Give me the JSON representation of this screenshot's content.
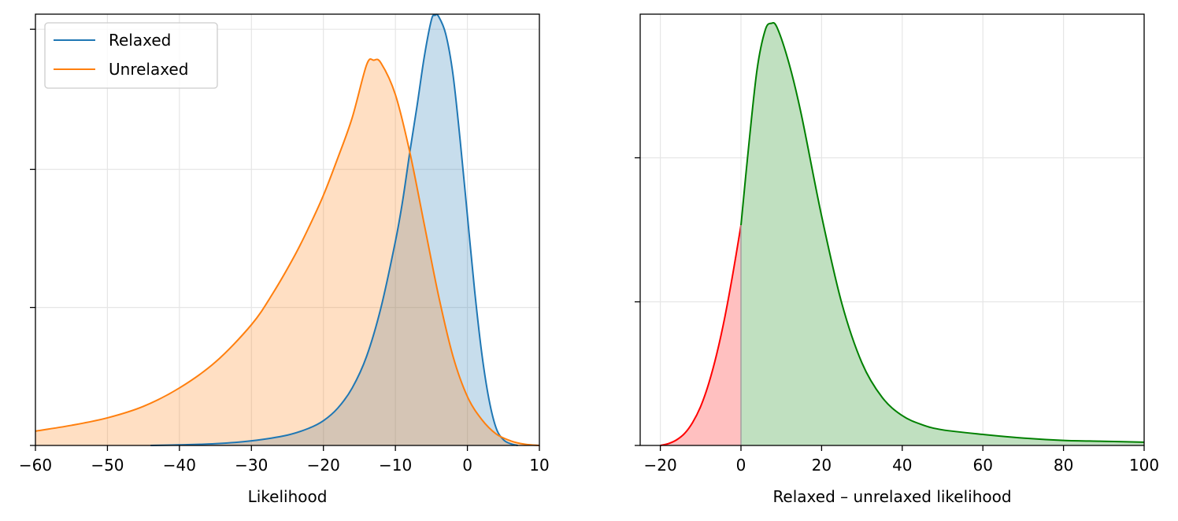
{
  "chart_data": [
    {
      "type": "line",
      "xlabel": "Likelihood",
      "ylabel": "",
      "xlim": [
        -60,
        10
      ],
      "xticks": [
        -60,
        -50,
        -40,
        -30,
        -20,
        -10,
        0,
        10
      ],
      "xtick_labels": [
        "−60",
        "−50",
        "−40",
        "−30",
        "−20",
        "−10",
        "0",
        "10"
      ],
      "y_ticks_unlabeled": true,
      "grid": true,
      "legend_position": "upper-left",
      "series": [
        {
          "name": "Relaxed",
          "color": "#1f77b4",
          "fill": true,
          "x": [
            -44,
            -40,
            -35,
            -30,
            -25,
            -22,
            -20,
            -18,
            -16,
            -14,
            -12,
            -10,
            -9,
            -8,
            -7,
            -6,
            -5,
            -4.5,
            -4,
            -3,
            -2,
            -1,
            0,
            1,
            2,
            3,
            4,
            5,
            6,
            7
          ],
          "y": [
            0.0,
            0.1,
            0.3,
            0.8,
            1.8,
            3.0,
            4.3,
            6.5,
            10.0,
            15.5,
            24.0,
            35.5,
            42.5,
            51.0,
            59.0,
            67.5,
            74.0,
            74.8,
            74.6,
            71.5,
            64.5,
            53.0,
            40.0,
            27.0,
            16.0,
            8.0,
            3.0,
            1.0,
            0.3,
            0.0
          ]
        },
        {
          "name": "Unrelaxed",
          "color": "#ff7f0e",
          "fill": true,
          "x": [
            -60,
            -55,
            -50,
            -45,
            -40,
            -35,
            -30,
            -27,
            -24,
            -22,
            -20,
            -18,
            -16,
            -14,
            -13,
            -12,
            -10,
            -8,
            -6,
            -4,
            -2,
            0,
            2,
            4,
            6,
            8,
            10
          ],
          "y": [
            2.5,
            3.5,
            4.8,
            6.8,
            10.0,
            14.5,
            21.0,
            26.5,
            33.0,
            38.0,
            43.5,
            50.0,
            57.0,
            66.2,
            67.0,
            66.5,
            61.0,
            51.0,
            38.5,
            26.0,
            15.5,
            8.5,
            4.5,
            2.0,
            0.8,
            0.2,
            0.0
          ]
        }
      ],
      "overlap_fill_color": "#d5c4b4",
      "ylim": [
        0,
        75
      ]
    },
    {
      "type": "area",
      "xlabel": "Relaxed – unrelaxed likelihood",
      "ylabel": "",
      "xlim": [
        -25,
        100
      ],
      "xticks": [
        -20,
        0,
        20,
        40,
        60,
        80,
        100
      ],
      "xtick_labels": [
        "−20",
        "0",
        "20",
        "40",
        "60",
        "80",
        "100"
      ],
      "y_ticks_unlabeled": true,
      "grid": true,
      "split_at": 0,
      "negative_color": "#ff0000",
      "negative_fill": "#ffc0c0",
      "positive_color": "#008000",
      "positive_fill": "#c0e0c0",
      "series": [
        {
          "x": [
            -20,
            -18,
            -16,
            -14,
            -12,
            -10,
            -8,
            -6,
            -4,
            -2,
            0,
            2,
            4,
            6,
            7.5,
            9,
            12,
            15,
            20,
            25,
            30,
            35,
            40,
            45,
            50,
            60,
            70,
            80,
            90,
            100
          ],
          "y": [
            0.0,
            0.4,
            1.2,
            2.6,
            5.0,
            8.5,
            13.5,
            20.0,
            28.0,
            37.5,
            48.0,
            66.0,
            82.0,
            90.5,
            92.0,
            91.0,
            83.0,
            72.0,
            50.0,
            31.0,
            18.0,
            10.5,
            6.5,
            4.5,
            3.4,
            2.4,
            1.6,
            1.1,
            0.9,
            0.7
          ]
        }
      ],
      "ylim": [
        0,
        94
      ]
    }
  ]
}
